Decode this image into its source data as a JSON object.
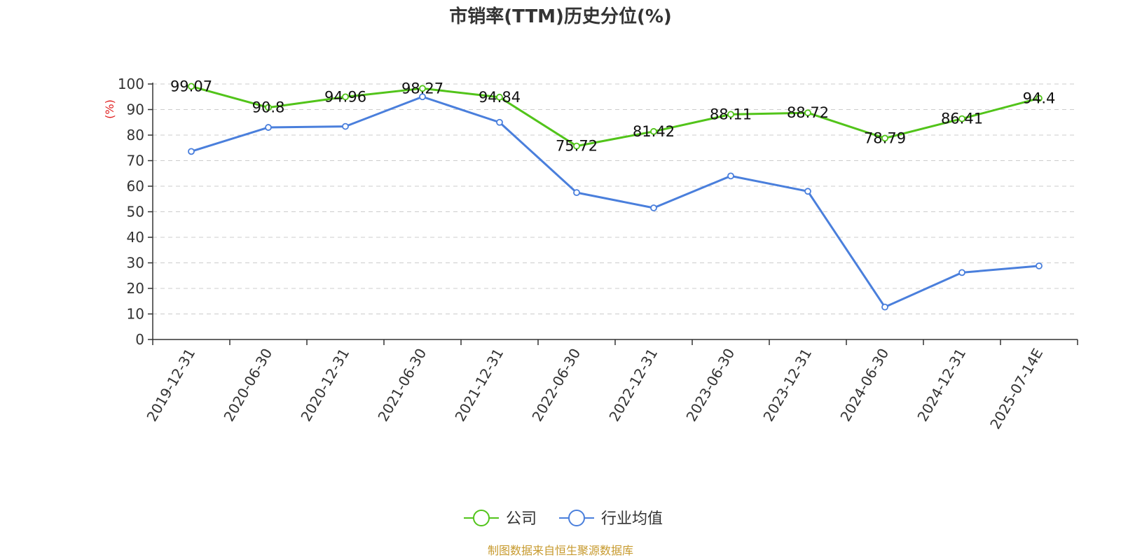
{
  "chart_data": {
    "type": "line",
    "title": "市销率(TTM)历史分位(%)",
    "ylabel": "(%)",
    "ylim": [
      0,
      100
    ],
    "yticks": [
      0,
      10,
      20,
      30,
      40,
      50,
      60,
      70,
      80,
      90,
      100
    ],
    "grid": true,
    "legend_position": "bottom",
    "categories": [
      "2019-12-31",
      "2020-06-30",
      "2020-12-31",
      "2021-06-30",
      "2021-12-31",
      "2022-06-30",
      "2022-12-31",
      "2023-06-30",
      "2023-12-31",
      "2024-06-30",
      "2024-12-31",
      "2025-07-14E"
    ],
    "series": [
      {
        "name": "公司",
        "color": "#52c41a",
        "show_labels": true,
        "values": [
          99.07,
          90.8,
          94.96,
          98.27,
          94.84,
          75.72,
          81.42,
          88.11,
          88.72,
          78.79,
          86.41,
          94.4
        ]
      },
      {
        "name": "行业均值",
        "color": "#4a7fdc",
        "show_labels": false,
        "values": [
          73.6,
          83.0,
          83.4,
          95.0,
          85.0,
          57.5,
          51.5,
          64.0,
          58.0,
          12.7,
          26.2,
          28.8
        ]
      }
    ]
  },
  "source": {
    "text": "制图数据来自恒生聚源数据库",
    "color": "#c79a2e"
  },
  "ylabel_color": "#e02020"
}
